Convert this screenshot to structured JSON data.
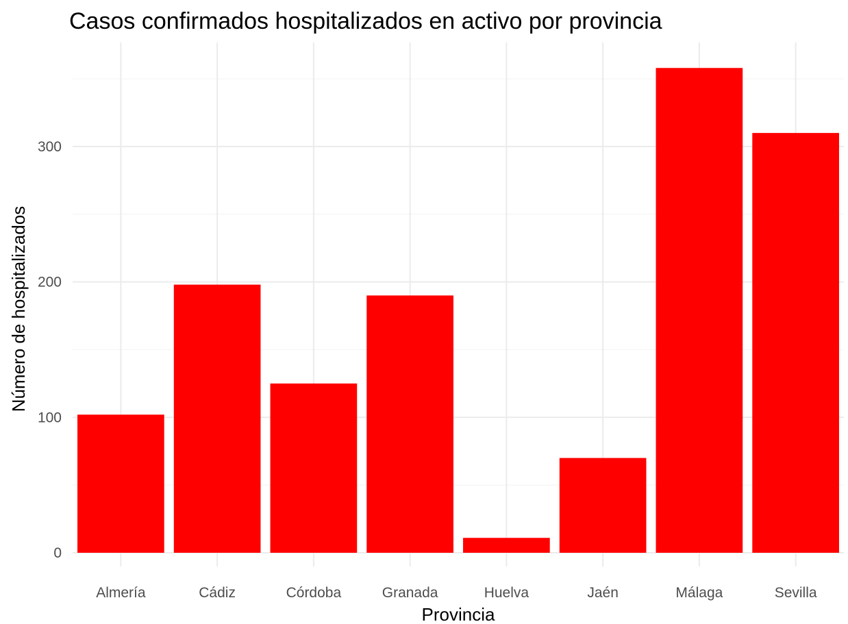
{
  "chart_data": {
    "type": "bar",
    "title": "Casos confirmados hospitalizados en activo por provincia",
    "xlabel": "Provincia",
    "ylabel": "Número de hospitalizados",
    "categories": [
      "Almería",
      "Cádiz",
      "Córdoba",
      "Granada",
      "Huelva",
      "Jaén",
      "Málaga",
      "Sevilla"
    ],
    "values": [
      102,
      198,
      125,
      190,
      11,
      70,
      358,
      310
    ],
    "ylim": [
      0,
      375
    ],
    "yticks": [
      0,
      100,
      200,
      300
    ],
    "grid": true,
    "legend": "none",
    "bar_color": "#ff0000"
  }
}
